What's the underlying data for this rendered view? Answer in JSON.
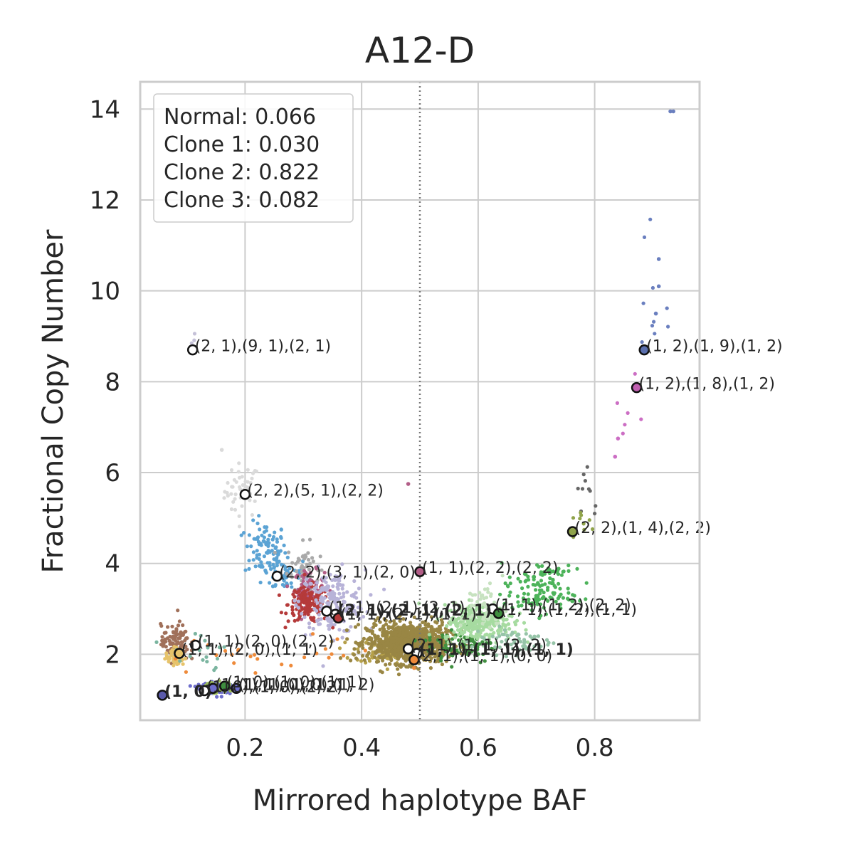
{
  "chart_data": {
    "type": "scatter",
    "title": "A12-D",
    "xlabel": "Mirrored haplotype BAF",
    "ylabel": "Fractional Copy Number",
    "xlim": [
      0.02,
      0.98
    ],
    "ylim": [
      0.55,
      14.6
    ],
    "xticks": [
      0.2,
      0.4,
      0.6,
      0.8
    ],
    "xtick_labels": [
      "0.2",
      "0.4",
      "0.6",
      "0.8"
    ],
    "yticks": [
      2,
      4,
      6,
      8,
      10,
      12,
      14
    ],
    "ytick_labels": [
      "2",
      "4",
      "6",
      "8",
      "10",
      "12",
      "14"
    ],
    "grid": true,
    "vline_x": 0.5,
    "legend": {
      "placement": "top-left",
      "entries": [
        "Normal: 0.066",
        "Clone 1: 0.030",
        "Clone 2: 0.822",
        "Clone 3: 0.082"
      ]
    },
    "clusters": [
      {
        "color": "#dadada",
        "x": 0.195,
        "y": 5.6,
        "sx": 0.015,
        "sy": 0.3,
        "n": 45
      },
      {
        "color": "#5ba3d4",
        "x": 0.235,
        "y": 4.3,
        "sx": 0.018,
        "sy": 0.3,
        "n": 90
      },
      {
        "color": "#5ba3d4",
        "x": 0.27,
        "y": 3.75,
        "sx": 0.02,
        "sy": 0.2,
        "n": 40
      },
      {
        "color": "#a9a9a9",
        "x": 0.3,
        "y": 3.95,
        "sx": 0.014,
        "sy": 0.25,
        "n": 45
      },
      {
        "color": "#b25d87",
        "x": 0.31,
        "y": 3.45,
        "sx": 0.013,
        "sy": 0.2,
        "n": 80
      },
      {
        "color": "#b53a3a",
        "x": 0.31,
        "y": 3.1,
        "sx": 0.018,
        "sy": 0.2,
        "n": 170
      },
      {
        "color": "#b8b3d8",
        "x": 0.35,
        "y": 3.15,
        "sx": 0.028,
        "sy": 0.35,
        "n": 180
      },
      {
        "color": "#b5a04a",
        "x": 0.45,
        "y": 2.1,
        "sx": 0.03,
        "sy": 0.15,
        "n": 120
      },
      {
        "color": "#998644",
        "x": 0.48,
        "y": 2.25,
        "sx": 0.035,
        "sy": 0.22,
        "n": 900
      },
      {
        "color": "#3f8f3f",
        "x": 0.57,
        "y": 2.2,
        "sx": 0.03,
        "sy": 0.2,
        "n": 80
      },
      {
        "color": "#a6dba0",
        "x": 0.6,
        "y": 2.7,
        "sx": 0.03,
        "sy": 0.2,
        "n": 260
      },
      {
        "color": "#c7e2c0",
        "x": 0.61,
        "y": 3.05,
        "sx": 0.02,
        "sy": 0.25,
        "n": 60
      },
      {
        "color": "#4db35a",
        "x": 0.7,
        "y": 3.3,
        "sx": 0.03,
        "sy": 0.2,
        "n": 90
      },
      {
        "color": "#4db35a",
        "x": 0.72,
        "y": 3.75,
        "sx": 0.02,
        "sy": 0.18,
        "n": 40
      },
      {
        "color": "#96c4a8",
        "x": 0.66,
        "y": 2.3,
        "sx": 0.035,
        "sy": 0.15,
        "n": 60
      },
      {
        "color": "#a0705a",
        "x": 0.08,
        "y": 2.25,
        "sx": 0.012,
        "sy": 0.2,
        "n": 110
      },
      {
        "color": "#e6c36a",
        "x": 0.08,
        "y": 1.95,
        "sx": 0.008,
        "sy": 0.1,
        "n": 50
      },
      {
        "color": "#ee8a3a",
        "x": 0.25,
        "y": 2.0,
        "sx": 0.1,
        "sy": 0.2,
        "n": 25
      },
      {
        "color": "#6e6ecc",
        "x": 0.15,
        "y": 1.25,
        "sx": 0.015,
        "sy": 0.06,
        "n": 140
      },
      {
        "color": "#9bbb5a",
        "x": 0.15,
        "y": 1.3,
        "sx": 0.015,
        "sy": 0.08,
        "n": 30
      },
      {
        "color": "#7bb5a0",
        "x": 0.12,
        "y": 2.1,
        "sx": 0.03,
        "sy": 0.3,
        "n": 20
      },
      {
        "color": "#6a7fbf",
        "x": 0.9,
        "y": 9.8,
        "sx": 0.01,
        "sy": 1.0,
        "n": 10
      },
      {
        "color": "#cc6ec4",
        "x": 0.86,
        "y": 7.3,
        "sx": 0.012,
        "sy": 0.5,
        "n": 6
      },
      {
        "color": "#666666",
        "x": 0.79,
        "y": 5.4,
        "sx": 0.012,
        "sy": 0.35,
        "n": 10
      },
      {
        "color": "#8fa34a",
        "x": 0.78,
        "y": 4.9,
        "sx": 0.012,
        "sy": 0.25,
        "n": 10
      },
      {
        "color": "#c5c1d8",
        "x": 0.11,
        "y": 8.95,
        "sx": 0.004,
        "sy": 0.1,
        "n": 4
      }
    ],
    "extra_points": [
      {
        "x": 0.93,
        "y": 13.95,
        "color": "#6a7fbf"
      },
      {
        "x": 0.935,
        "y": 13.95,
        "color": "#6a7fbf"
      },
      {
        "x": 0.91,
        "y": 10.7,
        "color": "#6a7fbf"
      },
      {
        "x": 0.91,
        "y": 10.1,
        "color": "#6a7fbf"
      },
      {
        "x": 0.905,
        "y": 9.5,
        "color": "#6a7fbf"
      },
      {
        "x": 0.84,
        "y": 6.75,
        "color": "#cc6ec4"
      },
      {
        "x": 0.835,
        "y": 6.35,
        "color": "#cc6ec4"
      },
      {
        "x": 0.16,
        "y": 6.5,
        "color": "#dadada"
      },
      {
        "x": 0.48,
        "y": 5.75,
        "color": "#b25d87"
      },
      {
        "x": 0.49,
        "y": 1.7,
        "color": "#ee8a3a"
      }
    ],
    "centroids": [
      {
        "x": 0.11,
        "y": 8.7,
        "fill": "#ffffff",
        "label": "(2, 1),(9, 1),(2, 1)",
        "bold": false
      },
      {
        "x": 0.885,
        "y": 8.7,
        "fill": "#5a6fae",
        "label": "(1, 2),(1, 9),(1, 2)",
        "bold": false
      },
      {
        "x": 0.872,
        "y": 7.87,
        "fill": "#c05fb0",
        "label": "(1, 2),(1, 8),(1, 2)",
        "bold": false
      },
      {
        "x": 0.2,
        "y": 5.52,
        "fill": "#ffffff",
        "label": "(2, 2),(5, 1),(2, 2)",
        "bold": false
      },
      {
        "x": 0.762,
        "y": 4.7,
        "fill": "#8fa34a",
        "label": "(2, 2),(1, 4),(2, 2)",
        "bold": false
      },
      {
        "x": 0.255,
        "y": 3.72,
        "fill": "#ffffff",
        "label": "(2, 2),(3, 1),(2, 0)",
        "bold": false
      },
      {
        "x": 0.5,
        "y": 3.82,
        "fill": "#b25d87",
        "label": "(1, 1),(2, 2),(2, 2)",
        "bold": false
      },
      {
        "x": 0.34,
        "y": 2.95,
        "fill": "#ffffff",
        "label": "(1, 1),(2, 1),(2, 1)",
        "bold": false
      },
      {
        "x": 0.355,
        "y": 2.88,
        "fill": "#ffffff",
        "label": "(2, 1),(2, 1),(2, 1)",
        "bold": true
      },
      {
        "x": 0.36,
        "y": 2.8,
        "fill": "#b53a3a",
        "label": "(1, 1),(2, 1),(1, 1)",
        "bold": false
      },
      {
        "x": 0.625,
        "y": 3.0,
        "fill": "#ffffff",
        "label": "(1, 1),(1, 2),(2, 2)",
        "bold": false
      },
      {
        "x": 0.635,
        "y": 2.9,
        "fill": "#3f8f3f",
        "label": "(1, 1),(1, 2),(1, 1)",
        "bold": false
      },
      {
        "x": 0.115,
        "y": 2.2,
        "fill": "#ffffff",
        "label": "(1, 1),(2, 0),(2, 2)",
        "bold": false
      },
      {
        "x": 0.087,
        "y": 2.02,
        "fill": "#e6c36a",
        "label": "(1, 1),(2, 0),(1, 1)",
        "bold": false
      },
      {
        "x": 0.48,
        "y": 2.12,
        "fill": "#ffffff",
        "label": "(2, 1),(1, 1),(2, 2)",
        "bold": false
      },
      {
        "x": 0.495,
        "y": 2.02,
        "fill": "#ffffff",
        "label": "(1, 1),(1, 1),(1, 1)",
        "bold": true
      },
      {
        "x": 0.49,
        "y": 1.88,
        "fill": "#ee8a3a",
        "label": "(2, 1),(1, 1),(0, 0)",
        "bold": false
      },
      {
        "x": 0.058,
        "y": 1.1,
        "fill": "#5a5aaa",
        "label": "(1, 0)",
        "bold": true
      },
      {
        "x": 0.13,
        "y": 1.2,
        "fill": "#ffffff",
        "label": "(1, 0),(1, 0),(2, 2)",
        "bold": false
      },
      {
        "x": 0.145,
        "y": 1.25,
        "fill": "#6e6ecc",
        "label": "(1, 1),(1, 0),(1, 1)",
        "bold": false
      },
      {
        "x": 0.165,
        "y": 1.3,
        "fill": "#3f8f3f",
        "label": "(1, 0),(1, 0),(1, 1)",
        "bold": false
      },
      {
        "x": 0.185,
        "y": 1.25,
        "fill": "#6e6ecc",
        "label": "(1, 1),(1, 0),(1, 2)",
        "bold": false
      }
    ],
    "colors": {
      "grid": "#cccccc",
      "frame": "#cccccc",
      "vline": "#777777",
      "centroid_edge": "#111111",
      "text": "#262626"
    }
  }
}
